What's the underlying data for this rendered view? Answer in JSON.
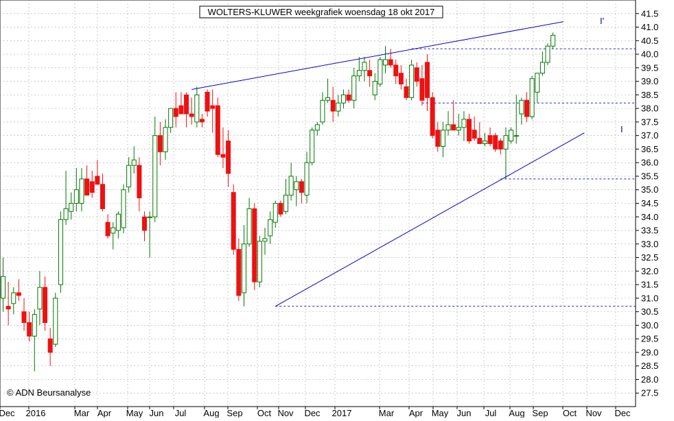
{
  "chart_data": {
    "type": "candlestick",
    "title": "WOLTERS-KLUWER weekgrafiek woensdag 18 okt 2017",
    "copyright": "© ADN Beursanalyse",
    "ylim": [
      27.0,
      42.0
    ],
    "y_ticks": [
      "27.5",
      "28.0",
      "28.5",
      "29.0",
      "29.5",
      "30.0",
      "30.5",
      "31.0",
      "31.5",
      "32.0",
      "32.5",
      "33.0",
      "33.5",
      "34.0",
      "34.5",
      "35.0",
      "35.5",
      "36.0",
      "36.5",
      "37.0",
      "37.5",
      "38.0",
      "38.5",
      "39.0",
      "39.5",
      "40.0",
      "40.5",
      "41.0",
      "41.5"
    ],
    "x_labels": [
      "Dec",
      "2016",
      "Mar",
      "Apr",
      "May",
      "Jun",
      "Jul",
      "Aug",
      "Sep",
      "Oct",
      "Nov",
      "Dec",
      "2017",
      "Mar",
      "Apr",
      "May",
      "Jun",
      "Jul",
      "Aug",
      "Sep",
      "Oct",
      "Nov",
      "Dec"
    ],
    "grid": true,
    "colors": {
      "up": "#007700",
      "down": "#ee1111",
      "trendline": "#0000cc",
      "grid": "#aaaaaa",
      "axis": "#000000"
    },
    "candles": [
      {
        "o": 31.0,
        "h": 32.5,
        "l": 30.5,
        "c": 31.8
      },
      {
        "o": 30.7,
        "h": 31.6,
        "l": 30.0,
        "c": 30.6
      },
      {
        "o": 30.8,
        "h": 31.4,
        "l": 30.4,
        "c": 31.2
      },
      {
        "o": 31.2,
        "h": 31.7,
        "l": 30.9,
        "c": 31.1
      },
      {
        "o": 30.5,
        "h": 31.0,
        "l": 29.8,
        "c": 30.1
      },
      {
        "o": 30.1,
        "h": 30.5,
        "l": 29.4,
        "c": 29.6
      },
      {
        "o": 29.6,
        "h": 30.6,
        "l": 28.3,
        "c": 30.4
      },
      {
        "o": 30.6,
        "h": 32.0,
        "l": 30.0,
        "c": 31.4
      },
      {
        "o": 31.4,
        "h": 31.8,
        "l": 29.8,
        "c": 30.1
      },
      {
        "o": 29.5,
        "h": 29.9,
        "l": 28.5,
        "c": 29.0
      },
      {
        "o": 29.3,
        "h": 31.2,
        "l": 29.2,
        "c": 31.0
      },
      {
        "o": 31.5,
        "h": 34.2,
        "l": 31.2,
        "c": 33.9
      },
      {
        "o": 33.9,
        "h": 35.7,
        "l": 33.7,
        "c": 34.3
      },
      {
        "o": 34.2,
        "h": 34.9,
        "l": 33.9,
        "c": 34.5
      },
      {
        "o": 34.5,
        "h": 35.8,
        "l": 34.2,
        "c": 35.0
      },
      {
        "o": 34.5,
        "h": 35.8,
        "l": 34.2,
        "c": 35.4
      },
      {
        "o": 35.4,
        "h": 35.9,
        "l": 34.8,
        "c": 34.8
      },
      {
        "o": 35.3,
        "h": 35.7,
        "l": 34.7,
        "c": 34.9
      },
      {
        "o": 35.5,
        "h": 36.1,
        "l": 35.2,
        "c": 35.2
      },
      {
        "o": 35.2,
        "h": 35.6,
        "l": 34.2,
        "c": 34.3
      },
      {
        "o": 33.8,
        "h": 34.1,
        "l": 33.2,
        "c": 33.3
      },
      {
        "o": 33.4,
        "h": 33.8,
        "l": 32.8,
        "c": 33.6
      },
      {
        "o": 33.5,
        "h": 34.2,
        "l": 33.2,
        "c": 34.1
      },
      {
        "o": 33.6,
        "h": 35.2,
        "l": 33.4,
        "c": 35.0
      },
      {
        "o": 35.1,
        "h": 36.2,
        "l": 34.9,
        "c": 35.9
      },
      {
        "o": 35.9,
        "h": 36.6,
        "l": 35.6,
        "c": 36.1
      },
      {
        "o": 35.9,
        "h": 36.2,
        "l": 34.2,
        "c": 34.7
      },
      {
        "o": 34.0,
        "h": 34.2,
        "l": 33.1,
        "c": 33.5
      },
      {
        "o": 34.0,
        "h": 34.2,
        "l": 32.5,
        "c": 34.0
      },
      {
        "o": 34.0,
        "h": 37.7,
        "l": 33.8,
        "c": 37.0
      },
      {
        "o": 37.0,
        "h": 37.5,
        "l": 35.9,
        "c": 36.4
      },
      {
        "o": 36.4,
        "h": 37.6,
        "l": 36.1,
        "c": 37.3
      },
      {
        "o": 37.3,
        "h": 38.0,
        "l": 37.1,
        "c": 38.0
      },
      {
        "o": 38.0,
        "h": 38.6,
        "l": 37.3,
        "c": 37.7
      },
      {
        "o": 38.1,
        "h": 38.6,
        "l": 37.8,
        "c": 37.8
      },
      {
        "o": 38.5,
        "h": 38.6,
        "l": 37.3,
        "c": 37.8
      },
      {
        "o": 37.8,
        "h": 38.4,
        "l": 37.4,
        "c": 37.7
      },
      {
        "o": 37.5,
        "h": 38.8,
        "l": 37.3,
        "c": 38.5
      },
      {
        "o": 37.6,
        "h": 37.8,
        "l": 37.3,
        "c": 37.5
      },
      {
        "o": 38.6,
        "h": 38.7,
        "l": 37.7,
        "c": 37.9
      },
      {
        "o": 38.1,
        "h": 38.7,
        "l": 37.1,
        "c": 38.0
      },
      {
        "o": 38.1,
        "h": 38.4,
        "l": 36.2,
        "c": 36.3
      },
      {
        "o": 36.3,
        "h": 37.3,
        "l": 35.8,
        "c": 36.2
      },
      {
        "o": 36.8,
        "h": 37.2,
        "l": 35.1,
        "c": 35.6
      },
      {
        "o": 34.9,
        "h": 35.2,
        "l": 32.6,
        "c": 32.8
      },
      {
        "o": 32.8,
        "h": 33.2,
        "l": 30.9,
        "c": 31.1
      },
      {
        "o": 31.2,
        "h": 33.7,
        "l": 30.7,
        "c": 33.0
      },
      {
        "o": 33.0,
        "h": 34.7,
        "l": 32.9,
        "c": 34.3
      },
      {
        "o": 34.3,
        "h": 34.5,
        "l": 31.3,
        "c": 31.6
      },
      {
        "o": 31.6,
        "h": 33.3,
        "l": 31.4,
        "c": 33.1
      },
      {
        "o": 33.1,
        "h": 33.6,
        "l": 32.6,
        "c": 33.2
      },
      {
        "o": 33.3,
        "h": 34.2,
        "l": 33.0,
        "c": 33.9
      },
      {
        "o": 33.8,
        "h": 34.6,
        "l": 33.6,
        "c": 34.5
      },
      {
        "o": 34.5,
        "h": 34.6,
        "l": 34.0,
        "c": 34.1
      },
      {
        "o": 34.2,
        "h": 35.4,
        "l": 34.1,
        "c": 34.8
      },
      {
        "o": 34.8,
        "h": 36.0,
        "l": 34.6,
        "c": 35.5
      },
      {
        "o": 35.0,
        "h": 35.5,
        "l": 34.4,
        "c": 35.3
      },
      {
        "o": 35.3,
        "h": 35.4,
        "l": 34.5,
        "c": 34.9
      },
      {
        "o": 34.8,
        "h": 36.4,
        "l": 34.5,
        "c": 36.0
      },
      {
        "o": 36.0,
        "h": 37.3,
        "l": 35.9,
        "c": 37.2
      },
      {
        "o": 37.2,
        "h": 37.5,
        "l": 37.0,
        "c": 37.4
      },
      {
        "o": 37.5,
        "h": 38.6,
        "l": 37.4,
        "c": 38.3
      },
      {
        "o": 38.3,
        "h": 39.1,
        "l": 38.2,
        "c": 38.4
      },
      {
        "o": 38.3,
        "h": 38.8,
        "l": 37.5,
        "c": 37.9
      },
      {
        "o": 37.9,
        "h": 38.5,
        "l": 37.7,
        "c": 38.2
      },
      {
        "o": 38.2,
        "h": 38.7,
        "l": 38.0,
        "c": 38.5
      },
      {
        "o": 38.5,
        "h": 38.7,
        "l": 38.2,
        "c": 38.3
      },
      {
        "o": 38.3,
        "h": 39.5,
        "l": 38.0,
        "c": 39.2
      },
      {
        "o": 39.2,
        "h": 39.9,
        "l": 39.0,
        "c": 39.4
      },
      {
        "o": 39.4,
        "h": 39.9,
        "l": 39.0,
        "c": 39.7
      },
      {
        "o": 39.4,
        "h": 39.8,
        "l": 38.8,
        "c": 39.2
      },
      {
        "o": 38.5,
        "h": 39.3,
        "l": 38.3,
        "c": 39.0
      },
      {
        "o": 38.9,
        "h": 39.9,
        "l": 38.8,
        "c": 39.8
      },
      {
        "o": 39.6,
        "h": 40.3,
        "l": 39.3,
        "c": 39.8
      },
      {
        "o": 39.8,
        "h": 40.2,
        "l": 39.5,
        "c": 39.6
      },
      {
        "o": 39.6,
        "h": 39.8,
        "l": 38.9,
        "c": 39.2
      },
      {
        "o": 39.3,
        "h": 39.6,
        "l": 38.7,
        "c": 38.9
      },
      {
        "o": 38.8,
        "h": 39.1,
        "l": 38.3,
        "c": 38.4
      },
      {
        "o": 38.4,
        "h": 39.8,
        "l": 38.3,
        "c": 39.6
      },
      {
        "o": 39.5,
        "h": 39.7,
        "l": 38.8,
        "c": 39.0
      },
      {
        "o": 39.1,
        "h": 39.6,
        "l": 38.1,
        "c": 38.3
      },
      {
        "o": 39.7,
        "h": 40.0,
        "l": 37.9,
        "c": 38.4
      },
      {
        "o": 38.4,
        "h": 38.6,
        "l": 36.9,
        "c": 37.0
      },
      {
        "o": 37.2,
        "h": 37.5,
        "l": 36.4,
        "c": 36.6
      },
      {
        "o": 36.6,
        "h": 37.5,
        "l": 36.2,
        "c": 37.2
      },
      {
        "o": 37.2,
        "h": 37.9,
        "l": 37.0,
        "c": 37.4
      },
      {
        "o": 37.4,
        "h": 38.3,
        "l": 37.2,
        "c": 37.2
      },
      {
        "o": 37.2,
        "h": 37.8,
        "l": 37.0,
        "c": 37.3
      },
      {
        "o": 37.3,
        "h": 37.9,
        "l": 36.8,
        "c": 37.6
      },
      {
        "o": 37.6,
        "h": 37.8,
        "l": 36.7,
        "c": 36.8
      },
      {
        "o": 37.2,
        "h": 37.7,
        "l": 36.8,
        "c": 36.9
      },
      {
        "o": 36.9,
        "h": 37.5,
        "l": 36.7,
        "c": 36.7
      },
      {
        "o": 36.7,
        "h": 37.1,
        "l": 36.6,
        "c": 36.8
      },
      {
        "o": 37.0,
        "h": 37.3,
        "l": 36.6,
        "c": 36.7
      },
      {
        "o": 37.0,
        "h": 37.1,
        "l": 36.4,
        "c": 36.5
      },
      {
        "o": 36.8,
        "h": 36.9,
        "l": 36.3,
        "c": 36.5
      },
      {
        "o": 36.5,
        "h": 37.3,
        "l": 35.4,
        "c": 37.0
      },
      {
        "o": 36.8,
        "h": 37.3,
        "l": 36.7,
        "c": 37.2
      },
      {
        "o": 37.0,
        "h": 38.5,
        "l": 36.7,
        "c": 37.0
      },
      {
        "o": 37.8,
        "h": 38.4,
        "l": 37.4,
        "c": 38.3
      },
      {
        "o": 38.3,
        "h": 38.6,
        "l": 37.5,
        "c": 37.7
      },
      {
        "o": 37.7,
        "h": 39.2,
        "l": 37.6,
        "c": 39.1
      },
      {
        "o": 38.6,
        "h": 39.3,
        "l": 38.2,
        "c": 39.3
      },
      {
        "o": 39.3,
        "h": 40.1,
        "l": 39.2,
        "c": 39.7
      },
      {
        "o": 39.7,
        "h": 40.4,
        "l": 39.6,
        "c": 40.3
      },
      {
        "o": 40.3,
        "h": 40.8,
        "l": 40.2,
        "c": 40.7
      }
    ],
    "annotations": {
      "upper_line_label": "I'",
      "lower_line_label": "I",
      "upper_line": [
        {
          "i": 36,
          "v": 38.7
        },
        {
          "i": 107,
          "v": 41.2
        }
      ],
      "lower_line": [
        {
          "i": 52,
          "v": 30.7
        },
        {
          "i": 111,
          "v": 37.1
        }
      ],
      "h_levels": [
        {
          "v": 40.2,
          "from": 78,
          "to": 112
        },
        {
          "v": 38.2,
          "from": 80,
          "to": 112
        },
        {
          "v": 35.4,
          "from": 95,
          "to": 112
        },
        {
          "v": 30.7,
          "from": 52,
          "to": 112
        }
      ]
    }
  }
}
